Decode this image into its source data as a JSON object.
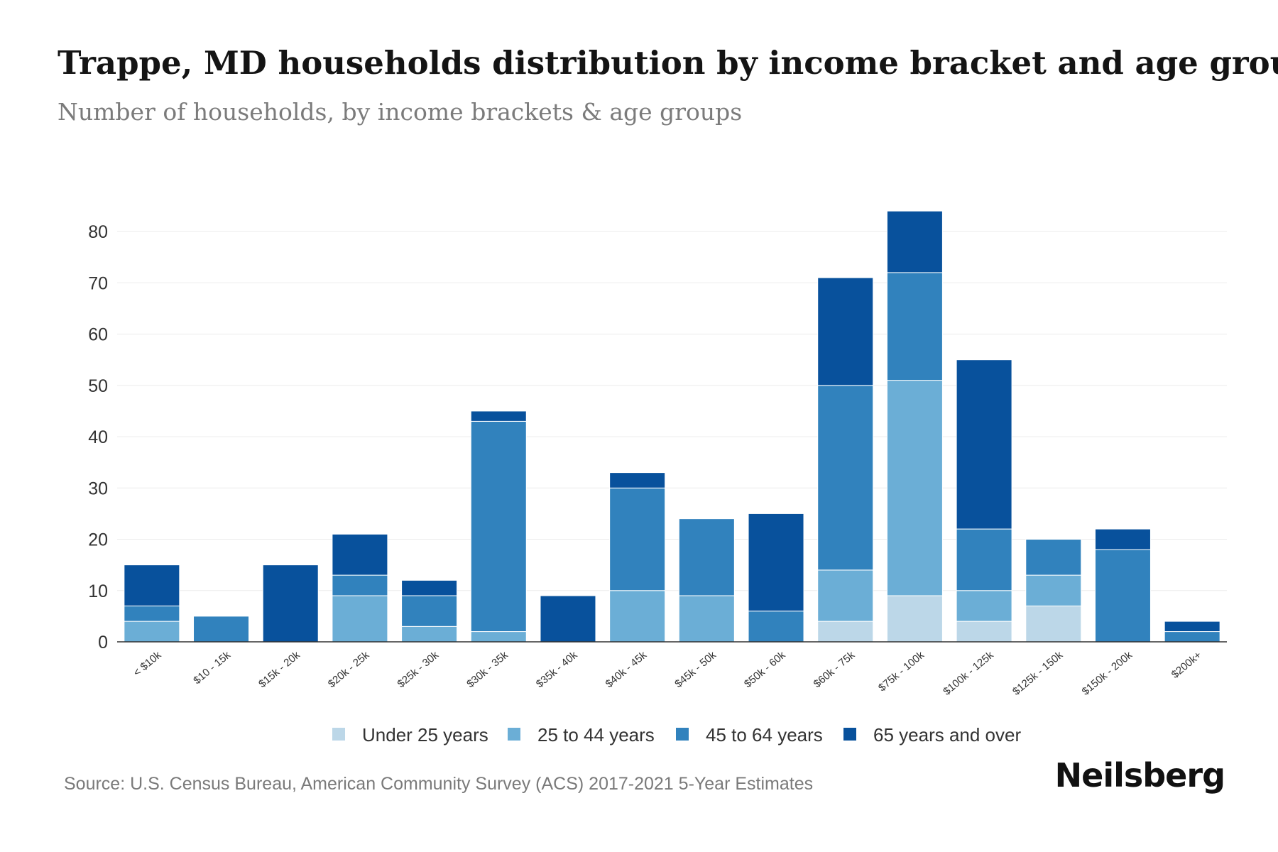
{
  "header": {
    "title": "Trappe, MD households distribution by income bracket and age group",
    "subtitle": "Number of households, by income brackets & age groups"
  },
  "footer": {
    "source": "Source: U.S. Census Bureau, American Community Survey (ACS) 2017-2021 5-Year Estimates",
    "brand": "Neilsberg"
  },
  "chart_data": {
    "type": "bar",
    "stacked": true,
    "title": "Trappe, MD households distribution by income bracket and age group",
    "subtitle": "Number of households, by income brackets & age groups",
    "xlabel": "",
    "ylabel": "",
    "ylim": [
      0,
      85
    ],
    "yticks": [
      0,
      10,
      20,
      30,
      40,
      50,
      60,
      70,
      80
    ],
    "grid": true,
    "legend_position": "bottom-center",
    "categories": [
      "< $10k",
      "$10 - 15k",
      "$15k - 20k",
      "$20k - 25k",
      "$25k - 30k",
      "$30k - 35k",
      "$35k - 40k",
      "$40k - 45k",
      "$45k - 50k",
      "$50k - 60k",
      "$60k - 75k",
      "$75k - 100k",
      "$100k - 125k",
      "$125k - 150k",
      "$150k - 200k",
      "$200k+"
    ],
    "series": [
      {
        "name": "Under 25 years",
        "color": "#bcd7e8",
        "values": [
          0,
          0,
          0,
          0,
          0,
          0,
          0,
          0,
          0,
          0,
          4,
          9,
          4,
          7,
          0,
          0
        ]
      },
      {
        "name": "25 to 44 years",
        "color": "#6baed6",
        "values": [
          4,
          0,
          0,
          9,
          3,
          2,
          0,
          10,
          9,
          0,
          10,
          42,
          6,
          6,
          0,
          0
        ]
      },
      {
        "name": "45 to 64 years",
        "color": "#3182bd",
        "values": [
          3,
          5,
          0,
          4,
          6,
          41,
          0,
          20,
          15,
          6,
          36,
          21,
          12,
          7,
          18,
          2
        ]
      },
      {
        "name": "65 years and over",
        "color": "#08519c",
        "values": [
          8,
          0,
          15,
          8,
          3,
          2,
          9,
          3,
          0,
          19,
          21,
          12,
          33,
          0,
          4,
          2
        ]
      }
    ]
  }
}
